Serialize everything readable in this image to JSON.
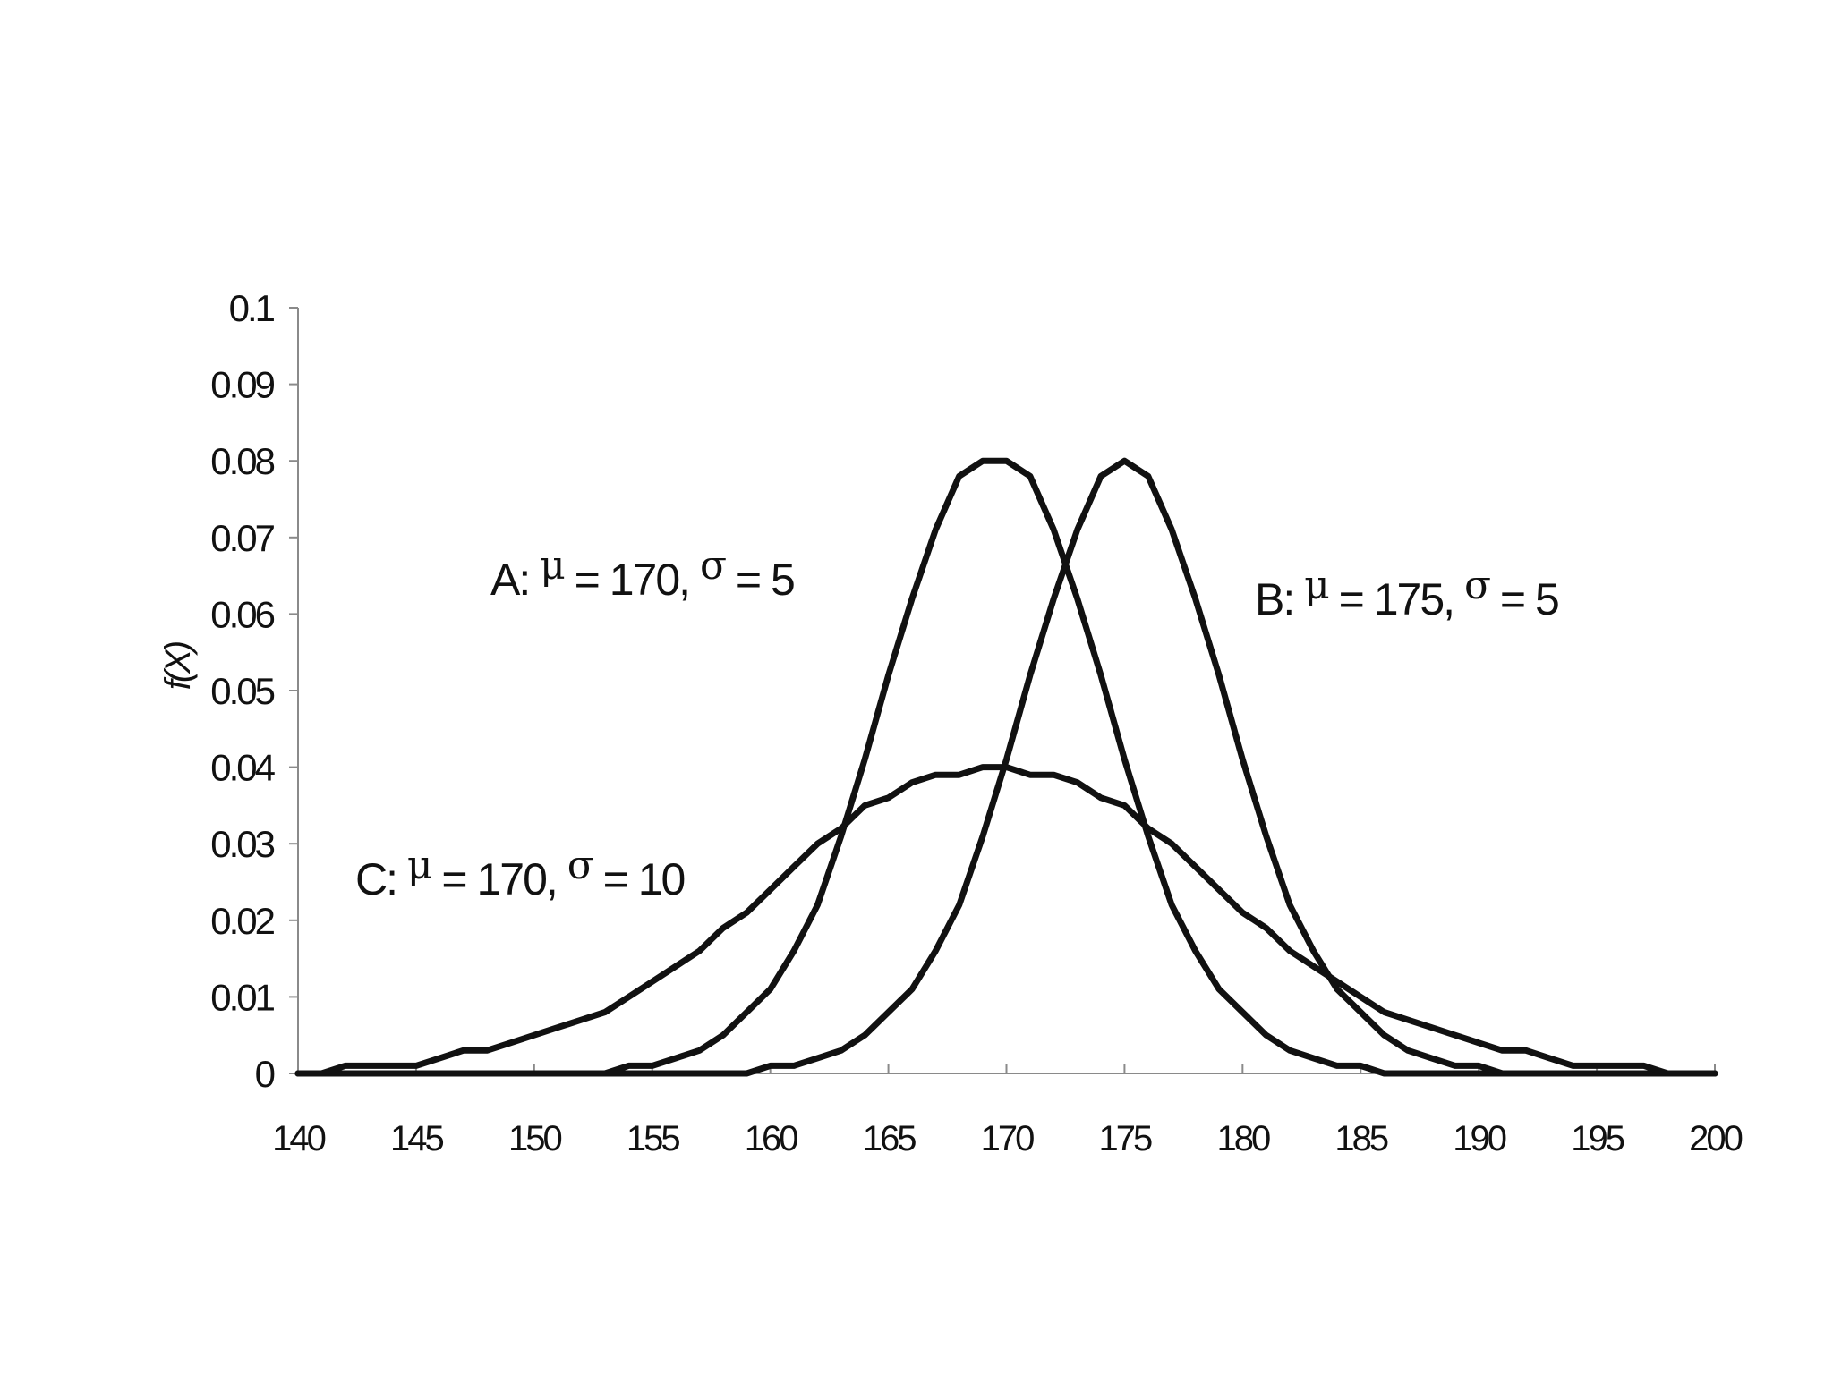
{
  "chart_data": {
    "type": "line",
    "title": "",
    "xlabel": "",
    "ylabel": "f(X)",
    "xlim": [
      140,
      200
    ],
    "ylim": [
      0,
      0.1
    ],
    "x_ticks": [
      "140",
      "145",
      "150",
      "155",
      "160",
      "165",
      "170",
      "175",
      "180",
      "185",
      "190",
      "195",
      "200"
    ],
    "y_ticks": [
      "0",
      "0.01",
      "0.02",
      "0.03",
      "0.04",
      "0.05",
      "0.06",
      "0.07",
      "0.08",
      "0.09",
      "0.1"
    ],
    "grid": false,
    "legend": "none",
    "series": [
      {
        "label": "A",
        "mu": 170,
        "sigma": 5,
        "x": [
          140,
          141,
          142,
          143,
          144,
          145,
          146,
          147,
          148,
          149,
          150,
          151,
          152,
          153,
          154,
          155,
          156,
          157,
          158,
          159,
          160,
          161,
          162,
          163,
          164,
          165,
          166,
          167,
          168,
          169,
          170,
          171,
          172,
          173,
          174,
          175,
          176,
          177,
          178,
          179,
          180,
          181,
          182,
          183,
          184,
          185,
          186,
          187,
          188,
          189,
          190,
          191,
          192,
          193,
          194,
          195,
          196,
          197,
          198,
          199,
          200
        ],
        "values": [
          0,
          0,
          0,
          0,
          0,
          0,
          0,
          0,
          0,
          0,
          0,
          0,
          0,
          0,
          0.001,
          0.001,
          0.002,
          0.003,
          0.005,
          0.008,
          0.011,
          0.016,
          0.022,
          0.031,
          0.041,
          0.052,
          0.062,
          0.071,
          0.078,
          0.08,
          0.08,
          0.078,
          0.071,
          0.062,
          0.052,
          0.041,
          0.031,
          0.022,
          0.016,
          0.011,
          0.008,
          0.005,
          0.003,
          0.002,
          0.001,
          0.001,
          0,
          0,
          0,
          0,
          0,
          0,
          0,
          0,
          0,
          0,
          0,
          0,
          0,
          0,
          0
        ]
      },
      {
        "label": "B",
        "mu": 175,
        "sigma": 5,
        "x": [
          140,
          141,
          142,
          143,
          144,
          145,
          146,
          147,
          148,
          149,
          150,
          151,
          152,
          153,
          154,
          155,
          156,
          157,
          158,
          159,
          160,
          161,
          162,
          163,
          164,
          165,
          166,
          167,
          168,
          169,
          170,
          171,
          172,
          173,
          174,
          175,
          176,
          177,
          178,
          179,
          180,
          181,
          182,
          183,
          184,
          185,
          186,
          187,
          188,
          189,
          190,
          191,
          192,
          193,
          194,
          195,
          196,
          197,
          198,
          199,
          200
        ],
        "values": [
          0,
          0,
          0,
          0,
          0,
          0,
          0,
          0,
          0,
          0,
          0,
          0,
          0,
          0,
          0,
          0,
          0,
          0,
          0,
          0,
          0.001,
          0.001,
          0.002,
          0.003,
          0.005,
          0.008,
          0.011,
          0.016,
          0.022,
          0.031,
          0.041,
          0.052,
          0.062,
          0.071,
          0.078,
          0.08,
          0.078,
          0.071,
          0.062,
          0.052,
          0.041,
          0.031,
          0.022,
          0.016,
          0.011,
          0.008,
          0.005,
          0.003,
          0.002,
          0.001,
          0.001,
          0,
          0,
          0,
          0,
          0,
          0,
          0,
          0,
          0,
          0
        ]
      },
      {
        "label": "C",
        "mu": 170,
        "sigma": 10,
        "x": [
          140,
          141,
          142,
          143,
          144,
          145,
          146,
          147,
          148,
          149,
          150,
          151,
          152,
          153,
          154,
          155,
          156,
          157,
          158,
          159,
          160,
          161,
          162,
          163,
          164,
          165,
          166,
          167,
          168,
          169,
          170,
          171,
          172,
          173,
          174,
          175,
          176,
          177,
          178,
          179,
          180,
          181,
          182,
          183,
          184,
          185,
          186,
          187,
          188,
          189,
          190,
          191,
          192,
          193,
          194,
          195,
          196,
          197,
          198,
          199,
          200
        ],
        "values": [
          0,
          0,
          0.001,
          0.001,
          0.001,
          0.001,
          0.002,
          0.003,
          0.003,
          0.004,
          0.005,
          0.006,
          0.007,
          0.008,
          0.01,
          0.012,
          0.014,
          0.016,
          0.019,
          0.021,
          0.024,
          0.027,
          0.03,
          0.032,
          0.035,
          0.036,
          0.038,
          0.039,
          0.039,
          0.04,
          0.04,
          0.039,
          0.039,
          0.038,
          0.036,
          0.035,
          0.032,
          0.03,
          0.027,
          0.024,
          0.021,
          0.019,
          0.016,
          0.014,
          0.012,
          0.01,
          0.008,
          0.007,
          0.006,
          0.005,
          0.004,
          0.003,
          0.003,
          0.002,
          0.001,
          0.001,
          0.001,
          0.001,
          0,
          0,
          0
        ]
      }
    ],
    "annotations": [
      {
        "series": "A",
        "prefix": "A: ",
        "mu_symbol": "μ",
        "mid": " = 170, ",
        "sigma_symbol": "σ",
        "suffix": " = 5"
      },
      {
        "series": "B",
        "prefix": "B: ",
        "mu_symbol": "μ",
        "mid": " = 175, ",
        "sigma_symbol": "σ",
        "suffix": " = 5"
      },
      {
        "series": "C",
        "prefix": "C: ",
        "mu_symbol": "μ",
        "mid": " = 170, ",
        "sigma_symbol": "σ",
        "suffix": " = 10"
      }
    ],
    "line_color": "#111111"
  }
}
